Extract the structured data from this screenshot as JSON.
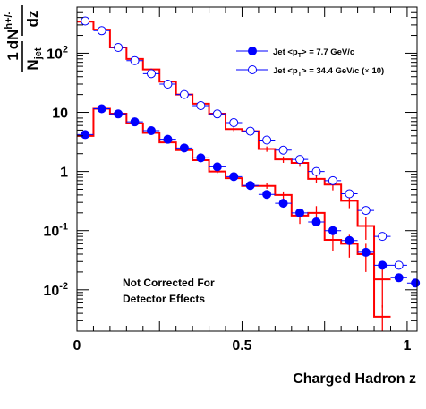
{
  "chart_data": {
    "type": "scatter",
    "title": "",
    "xlabel": "Charged Hadron z",
    "ylabel": {
      "numerator": "1",
      "denominator": "N",
      "denominator_sub": "jet",
      "derivative": "dN",
      "derivative_sup": "h+/-",
      "derivative_over": "dz"
    },
    "xlim": [
      0,
      1.03
    ],
    "ylim": [
      0.002,
      600
    ],
    "yscale": "log",
    "grid": false,
    "legend_position": "top-right",
    "x_ticks": [
      {
        "value": 0,
        "label": "0"
      },
      {
        "value": 0.5,
        "label": "0.5"
      },
      {
        "value": 1,
        "label": "1"
      }
    ],
    "y_ticks": [
      {
        "value": 0.01,
        "label": "10",
        "sup": "-2"
      },
      {
        "value": 0.1,
        "label": "10",
        "sup": "-1"
      },
      {
        "value": 1,
        "label": "1",
        "sup": ""
      },
      {
        "value": 10,
        "label": "10",
        "sup": ""
      },
      {
        "value": 100,
        "label": "10",
        "sup": "2"
      }
    ],
    "series": [
      {
        "name": "Jet <p_T> = 7.7 GeV/c",
        "legend_parts": {
          "pre": "Jet <p",
          "sub": "T",
          "post": "> = 7.7 GeV/c"
        },
        "marker": "filled-circle",
        "marker_color": "#0000ff",
        "x": [
          0.025,
          0.075,
          0.125,
          0.175,
          0.225,
          0.275,
          0.325,
          0.375,
          0.425,
          0.475,
          0.525,
          0.575,
          0.625,
          0.675,
          0.725,
          0.775,
          0.825,
          0.875,
          0.925,
          0.975,
          1.025
        ],
        "y": [
          4.2,
          11.5,
          9.4,
          6.9,
          4.9,
          3.5,
          2.5,
          1.7,
          1.2,
          0.82,
          0.58,
          0.41,
          0.29,
          0.2,
          0.14,
          0.1,
          0.068,
          0.043,
          0.026,
          0.016,
          0.013
        ]
      },
      {
        "name": "Jet <p_T> = 34.4 GeV/c (× 10)",
        "legend_parts": {
          "pre": "Jet <p",
          "sub": "T",
          "post": "> = 34.4 GeV/c (",
          "times": "×",
          "post2": " 10)"
        },
        "marker": "open-circle",
        "marker_color": "#0000ff",
        "x": [
          0.025,
          0.075,
          0.125,
          0.175,
          0.225,
          0.275,
          0.325,
          0.375,
          0.425,
          0.475,
          0.525,
          0.575,
          0.625,
          0.675,
          0.725,
          0.775,
          0.825,
          0.875,
          0.925,
          0.975
        ],
        "y": [
          350,
          240,
          125,
          75,
          45,
          30,
          20,
          13,
          9.4,
          6.7,
          4.8,
          3.4,
          2.3,
          1.6,
          1.0,
          0.7,
          0.42,
          0.22,
          0.08,
          0.026
        ]
      }
    ],
    "sim_hist_series": [
      {
        "for": "Jet <p_T> = 7.7 GeV/c",
        "color": "#ff0000",
        "bin_edges": [
          0,
          0.05,
          0.1,
          0.15,
          0.2,
          0.25,
          0.3,
          0.35,
          0.4,
          0.45,
          0.5,
          0.55,
          0.6,
          0.65,
          0.7,
          0.75,
          0.8,
          0.85,
          0.9,
          0.95
        ],
        "values": [
          4.0,
          11.5,
          9.5,
          6.5,
          4.5,
          3.1,
          2.3,
          1.55,
          1.0,
          0.77,
          0.57,
          0.57,
          0.4,
          0.18,
          0.2,
          0.07,
          0.06,
          0.04,
          0.0035
        ],
        "errors": [
          0.2,
          0.3,
          0.25,
          0.2,
          0.15,
          0.1,
          0.1,
          0.08,
          0.06,
          0.05,
          0.05,
          0.06,
          0.06,
          0.05,
          0.06,
          0.025,
          0.025,
          0.02,
          0.002
        ]
      },
      {
        "for": "Jet <p_T> = 34.4 GeV/c (× 10)",
        "color": "#ff0000",
        "bin_edges": [
          0,
          0.05,
          0.1,
          0.15,
          0.2,
          0.25,
          0.3,
          0.35,
          0.4,
          0.45,
          0.5,
          0.55,
          0.6,
          0.65,
          0.7,
          0.75,
          0.8,
          0.85,
          0.9,
          0.95
        ],
        "values": [
          340,
          250,
          125,
          80,
          53,
          33,
          20,
          14,
          9.5,
          5.2,
          4.8,
          2.4,
          1.6,
          1.4,
          0.75,
          0.6,
          0.32,
          0.12,
          0.015
        ],
        "errors": [
          10,
          8,
          5,
          3,
          2,
          1.5,
          1.0,
          0.8,
          0.6,
          0.4,
          0.4,
          0.25,
          0.2,
          0.2,
          0.12,
          0.12,
          0.08,
          0.05,
          0.01
        ]
      }
    ],
    "annotations": [
      "Not Corrected For",
      "Detector Effects"
    ]
  }
}
